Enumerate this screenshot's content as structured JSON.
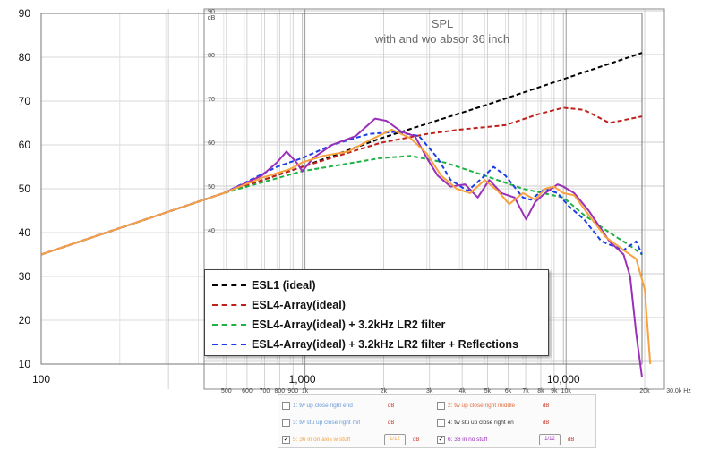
{
  "chart_data": {
    "type": "line",
    "title": "SPL",
    "subtitle": "with and wo absor 36 inch",
    "x_scale": "log",
    "xlim": [
      100,
      30000
    ],
    "ylim": [
      10,
      90
    ],
    "y_ticks": [
      10,
      20,
      30,
      40,
      50,
      60,
      70,
      80,
      90
    ],
    "x_ticks_main": [
      {
        "value": 100,
        "label": "100"
      },
      {
        "value": 1000,
        "label": "1,000"
      },
      {
        "value": 10000,
        "label": "10,000"
      }
    ],
    "overlay_y_ticks": [
      {
        "value": 40,
        "label": "40"
      },
      {
        "value": 50,
        "label": "50"
      },
      {
        "value": 60,
        "label": "60"
      },
      {
        "value": 70,
        "label": "70"
      },
      {
        "value": 80,
        "label": "80"
      },
      {
        "value": 90,
        "label": "90"
      }
    ],
    "overlay_y_unit": "dB",
    "overlay_x_ticks": [
      {
        "value": 500,
        "label": "500"
      },
      {
        "value": 600,
        "label": "600"
      },
      {
        "value": 700,
        "label": "700"
      },
      {
        "value": 800,
        "label": "800"
      },
      {
        "value": 900,
        "label": "900"
      },
      {
        "value": 1000,
        "label": "1k"
      },
      {
        "value": 2000,
        "label": "2k"
      },
      {
        "value": 3000,
        "label": "3k"
      },
      {
        "value": 4000,
        "label": "4k"
      },
      {
        "value": 5000,
        "label": "5k"
      },
      {
        "value": 6000,
        "label": "6k"
      },
      {
        "value": 7000,
        "label": "7k"
      },
      {
        "value": 8000,
        "label": "8k"
      },
      {
        "value": 9000,
        "label": "9k"
      },
      {
        "value": 10000,
        "label": "10k"
      },
      {
        "value": 20000,
        "label": "20k"
      },
      {
        "value": 30000,
        "label": "30.0k Hz"
      }
    ],
    "grid": true,
    "legend_position": "bottom-center",
    "series": [
      {
        "name": "ESL1 (ideal)",
        "color": "#000000",
        "style": "dashed",
        "x": [
          100,
          500,
          1000,
          2000,
          5000,
          10000,
          20000
        ],
        "y": [
          35,
          49,
          55,
          61.5,
          69,
          75,
          81
        ]
      },
      {
        "name": "ESL4-Array(ideal)",
        "color": "#c0201b",
        "style": "dashed",
        "x": [
          100,
          500,
          1000,
          2000,
          3000,
          4000,
          6000,
          8000,
          10000,
          12000,
          15000,
          20000
        ],
        "y": [
          35,
          49,
          55,
          60.5,
          62.5,
          63.5,
          64.5,
          67,
          68.5,
          68,
          65,
          66.5
        ]
      },
      {
        "name": "ESL4-Array(ideal) + 3.2kHz LR2 filter",
        "color": "#1fb243",
        "style": "dashed",
        "x": [
          100,
          500,
          1000,
          2000,
          2600,
          3500,
          5000,
          7000,
          10000,
          12000,
          15000,
          18000,
          20000
        ],
        "y": [
          35,
          49,
          54,
          57,
          57.5,
          56,
          53,
          50,
          48,
          44,
          40,
          37,
          35
        ]
      },
      {
        "name": "ESL4-Array(ideal) + 3.2kHz LR2 filter + Reflections",
        "color": "#1c3ee6",
        "style": "dashed",
        "x": [
          100,
          500,
          800,
          1000,
          1300,
          1800,
          2300,
          2800,
          3300,
          3700,
          4300,
          5000,
          5400,
          6000,
          7000,
          7500,
          8500,
          9500,
          10500,
          12000,
          14000,
          17000,
          19000,
          20000
        ],
        "y": [
          35,
          49,
          55,
          57,
          60,
          62.5,
          63,
          62,
          57,
          52,
          49.5,
          53,
          55,
          53,
          48,
          47.5,
          50,
          49,
          46,
          43,
          38,
          36,
          38,
          35
        ]
      },
      {
        "name": "6: 36 in no stuff",
        "color": "#9b30b8",
        "style": "solid",
        "x": [
          100,
          500,
          700,
          800,
          870,
          950,
          1000,
          1100,
          1300,
          1600,
          1900,
          2100,
          2400,
          2700,
          3000,
          3300,
          3700,
          4200,
          4700,
          5200,
          5800,
          6500,
          7200,
          7800,
          8500,
          9000,
          9500,
          10000,
          11000,
          12500,
          15000,
          17000,
          18000,
          19000,
          20000
        ],
        "y": [
          35,
          49,
          53,
          56,
          58.5,
          56,
          54,
          57,
          60,
          62,
          66,
          65.5,
          63,
          62,
          57,
          53,
          50.5,
          51,
          48,
          52,
          49,
          48,
          43,
          47,
          49,
          50,
          51,
          50.5,
          49,
          45,
          38,
          35,
          30,
          17,
          7
        ]
      },
      {
        "name": "5: 36 in on axis w stuff",
        "color": "#f7a23e",
        "style": "solid",
        "x": [
          100,
          500,
          700,
          900,
          1000,
          1200,
          1500,
          1800,
          2200,
          2600,
          3000,
          3400,
          3900,
          4400,
          5000,
          5600,
          6200,
          7000,
          7800,
          8500,
          9200,
          10000,
          11000,
          12500,
          14500,
          17000,
          19000,
          20500,
          21500
        ],
        "y": [
          35,
          49,
          52.5,
          54.5,
          56,
          57.5,
          58.5,
          61,
          63.5,
          61.5,
          58,
          53,
          50,
          49,
          52,
          49.5,
          46.5,
          49,
          47.5,
          50,
          50.5,
          49,
          48.5,
          44,
          39,
          36,
          34,
          27,
          10
        ]
      }
    ]
  },
  "legend": {
    "items": [
      {
        "label": "ESL1 (ideal)",
        "color": "#000000"
      },
      {
        "label": "ESL4-Array(ideal)",
        "color": "#c0201b"
      },
      {
        "label": "ESL4-Array(ideal) + 3.2kHz LR2 filter",
        "color": "#1fb243"
      },
      {
        "label": "ESL4-Array(ideal) + 3.2kHz LR2 filter + Reflections",
        "color": "#1c3ee6"
      }
    ]
  },
  "trace_panel": {
    "rows": [
      [
        {
          "label": "1: tw up close right end",
          "checked": false,
          "db": "dB",
          "icon": "",
          "color": "#6a9bd8"
        },
        {
          "label": "2: tw up close right middle",
          "checked": false,
          "db": "dB",
          "icon": "",
          "color": "#e07040"
        }
      ],
      [
        {
          "label": "3: tw stu up close right mif",
          "checked": false,
          "db": "dB",
          "icon": "",
          "color": "#6a9bd8"
        },
        {
          "label": "4: tw stu up close right en",
          "checked": false,
          "db": "dB",
          "icon": "",
          "color": "#333333"
        }
      ],
      [
        {
          "label": "5: 36 in on axis w stuff",
          "checked": true,
          "db": "dB",
          "icon": "1/12",
          "color": "#f7a23e"
        },
        {
          "label": "6: 36 in no stuff",
          "checked": true,
          "db": "dB",
          "icon": "1/12",
          "color": "#9b30b8"
        }
      ]
    ]
  }
}
